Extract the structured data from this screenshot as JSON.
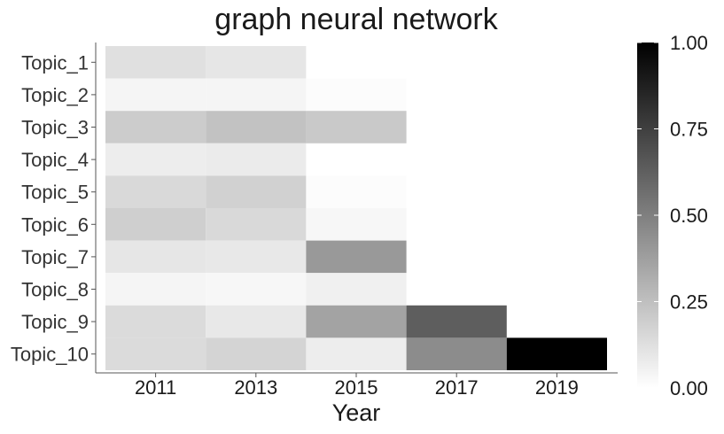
{
  "chart_data": {
    "type": "heatmap",
    "title": "graph neural network",
    "xlabel": "Year",
    "ylabel": "",
    "years": [
      2011,
      2013,
      2015,
      2017,
      2019
    ],
    "x_ticks": [
      "2011",
      "2013",
      "2015",
      "2017",
      "2019"
    ],
    "topics": [
      "Topic_1",
      "Topic_2",
      "Topic_3",
      "Topic_4",
      "Topic_5",
      "Topic_6",
      "Topic_7",
      "Topic_8",
      "Topic_9",
      "Topic_10"
    ],
    "values": [
      [
        0.12,
        0.1,
        null,
        null,
        null
      ],
      [
        0.04,
        0.04,
        0.01,
        null,
        null
      ],
      [
        0.2,
        0.24,
        0.21,
        null,
        null
      ],
      [
        0.07,
        0.08,
        null,
        null,
        null
      ],
      [
        0.15,
        0.18,
        0.01,
        null,
        null
      ],
      [
        0.19,
        0.15,
        0.03,
        null,
        null
      ],
      [
        0.1,
        0.09,
        0.4,
        null,
        null
      ],
      [
        0.04,
        0.03,
        0.06,
        null,
        null
      ],
      [
        0.14,
        0.09,
        0.36,
        0.63,
        null
      ],
      [
        0.14,
        0.17,
        0.07,
        0.45,
        1.0
      ]
    ],
    "colorbar": {
      "min": 0,
      "max": 1,
      "ticks": [
        "0.00",
        "0.25",
        "0.50",
        "0.75",
        "1.00"
      ],
      "low_color": "#ffffff",
      "high_color": "#000000"
    },
    "grid": false
  }
}
